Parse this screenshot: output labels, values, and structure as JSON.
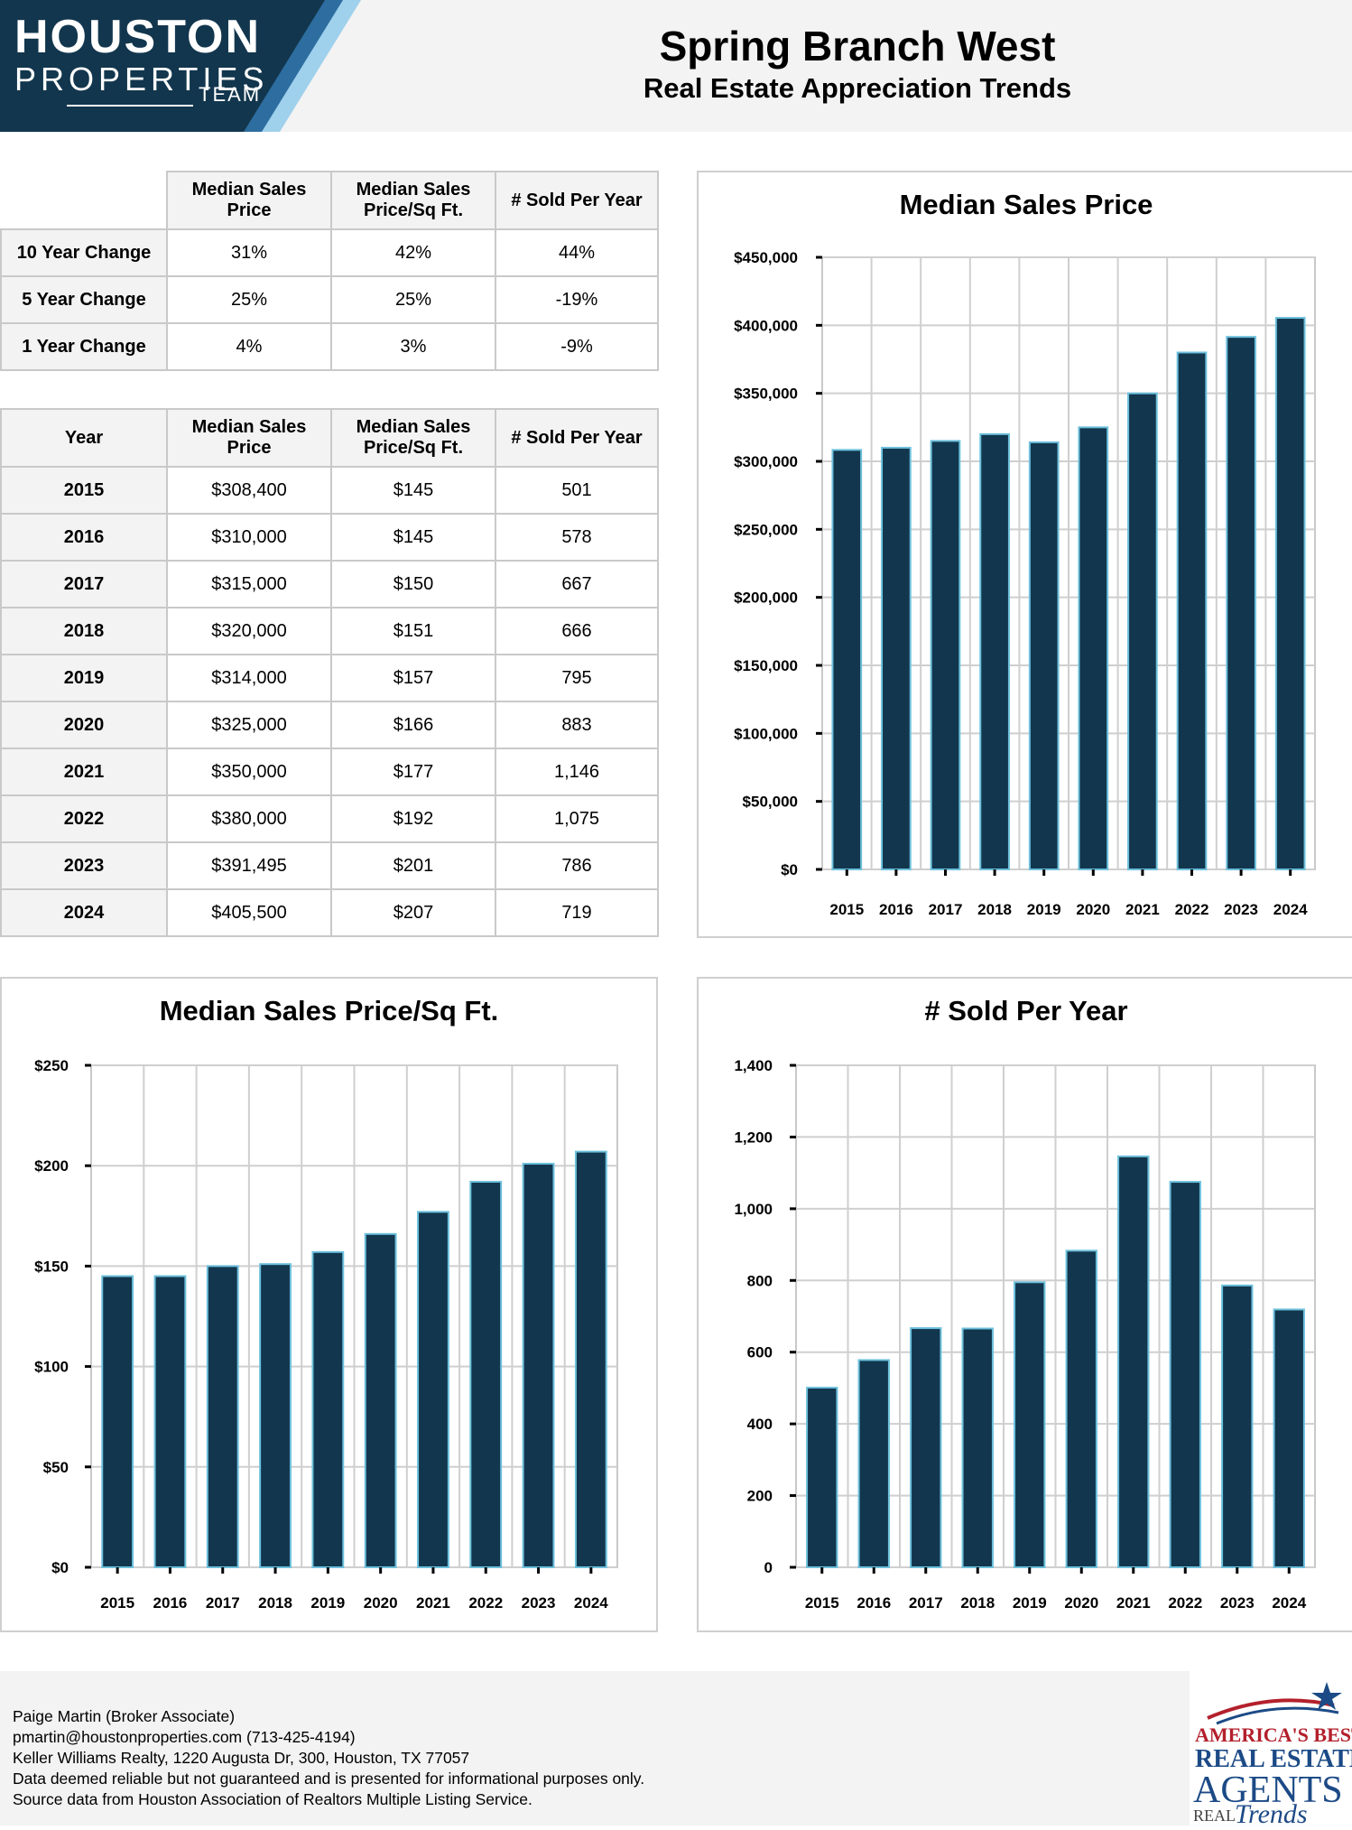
{
  "logo": {
    "line1": "HOUSTON",
    "line2": "PROPERTIES",
    "line3": "TEAM"
  },
  "header": {
    "title": "Spring Branch West",
    "subtitle": "Real Estate Appreciation Trends"
  },
  "change_table": {
    "headers": [
      "Median Sales Price",
      "Median Sales Price/Sq Ft.",
      "# Sold Per Year"
    ],
    "rows": [
      {
        "label": "10 Year Change",
        "values": [
          "31%",
          "42%",
          "44%"
        ]
      },
      {
        "label": "5 Year Change",
        "values": [
          "25%",
          "25%",
          "-19%"
        ]
      },
      {
        "label": "1 Year Change",
        "values": [
          "4%",
          "3%",
          "-9%"
        ]
      }
    ]
  },
  "year_table": {
    "headers": [
      "Year",
      "Median Sales Price",
      "Median Sales Price/Sq Ft.",
      "# Sold Per Year"
    ],
    "rows": [
      [
        "2015",
        "$308,400",
        "$145",
        "501"
      ],
      [
        "2016",
        "$310,000",
        "$145",
        "578"
      ],
      [
        "2017",
        "$315,000",
        "$150",
        "667"
      ],
      [
        "2018",
        "$320,000",
        "$151",
        "666"
      ],
      [
        "2019",
        "$314,000",
        "$157",
        "795"
      ],
      [
        "2020",
        "$325,000",
        "$166",
        "883"
      ],
      [
        "2021",
        "$350,000",
        "$177",
        "1,146"
      ],
      [
        "2022",
        "$380,000",
        "$192",
        "1,075"
      ],
      [
        "2023",
        "$391,495",
        "$201",
        "786"
      ],
      [
        "2024",
        "$405,500",
        "$207",
        "719"
      ]
    ]
  },
  "chart_data": [
    {
      "type": "bar",
      "title": "Median Sales Price",
      "categories": [
        "2015",
        "2016",
        "2017",
        "2018",
        "2019",
        "2020",
        "2021",
        "2022",
        "2023",
        "2024"
      ],
      "values": [
        308400,
        310000,
        315000,
        320000,
        314000,
        325000,
        350000,
        380000,
        391495,
        405500
      ],
      "ylim": [
        0,
        450000
      ],
      "yticks": [
        0,
        50000,
        100000,
        150000,
        200000,
        250000,
        300000,
        350000,
        400000,
        450000
      ],
      "ytick_labels": [
        "$0",
        "$50,000",
        "$100,000",
        "$150,000",
        "$200,000",
        "$250,000",
        "$300,000",
        "$350,000",
        "$400,000",
        "$450,000"
      ],
      "grid": true,
      "bar_color": "#12364d",
      "bar_edge_color": "#6cc0dc"
    },
    {
      "type": "bar",
      "title": "Median Sales Price/Sq Ft.",
      "categories": [
        "2015",
        "2016",
        "2017",
        "2018",
        "2019",
        "2020",
        "2021",
        "2022",
        "2023",
        "2024"
      ],
      "values": [
        145,
        145,
        150,
        151,
        157,
        166,
        177,
        192,
        201,
        207
      ],
      "ylim": [
        0,
        250
      ],
      "yticks": [
        0,
        50,
        100,
        150,
        200,
        250
      ],
      "ytick_labels": [
        "$0",
        "$50",
        "$100",
        "$150",
        "$200",
        "$250"
      ],
      "grid": true,
      "bar_color": "#12364d",
      "bar_edge_color": "#6cc0dc"
    },
    {
      "type": "bar",
      "title": "# Sold Per Year",
      "categories": [
        "2015",
        "2016",
        "2017",
        "2018",
        "2019",
        "2020",
        "2021",
        "2022",
        "2023",
        "2024"
      ],
      "values": [
        501,
        578,
        667,
        666,
        795,
        883,
        1146,
        1075,
        786,
        719
      ],
      "ylim": [
        0,
        1400
      ],
      "yticks": [
        0,
        200,
        400,
        600,
        800,
        1000,
        1200,
        1400
      ],
      "ytick_labels": [
        "0",
        "200",
        "400",
        "600",
        "800",
        "1,000",
        "1,200",
        "1,400"
      ],
      "grid": true,
      "bar_color": "#12364d",
      "bar_edge_color": "#6cc0dc"
    }
  ],
  "footer": {
    "agent": "Paige Martin (Broker Associate)",
    "contact": "pmartin@houstonproperties.com (713-425-4194)",
    "office": "Keller Williams Realty, 1220 Augusta Dr, 300, Houston, TX 77057",
    "disclaimer": "Data deemed reliable but not guaranteed and is presented for informational purposes only.",
    "source": "Source data from Houston Association of Realtors Multiple Listing Service."
  },
  "badge": {
    "line1": "AMERICA'S BEST",
    "line2": "REAL ESTATE",
    "line3": "AGENTS",
    "line4": "REAL",
    "line5": "Trends"
  },
  "colors": {
    "navy": "#12364d",
    "accent_blue": "#6cc0dc",
    "header_bg": "#f3f3f3",
    "badge_red": "#b3202c",
    "badge_blue": "#1c4a86"
  }
}
